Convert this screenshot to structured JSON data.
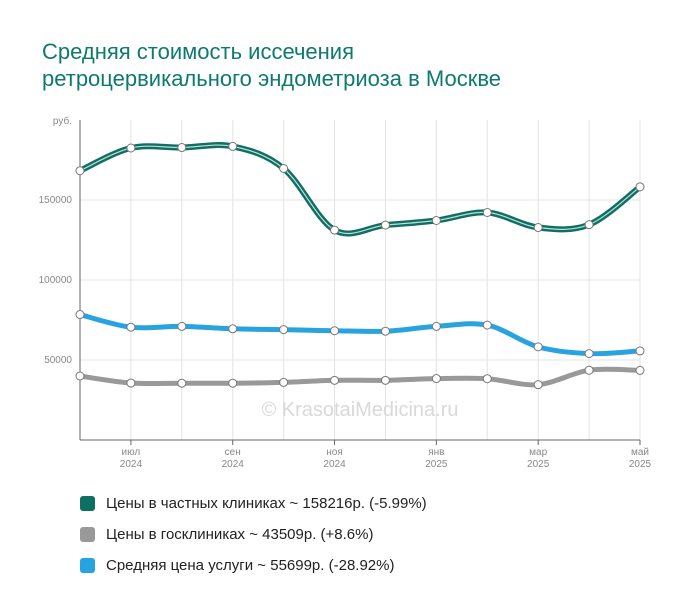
{
  "chart_data": {
    "type": "line",
    "title_lines": [
      "Средняя стоимость иссечения",
      "ретроцервикального эндометриоза в Москве"
    ],
    "y_unit": "руб.",
    "ylim": [
      0,
      200000
    ],
    "y_ticks": [
      {
        "value": 50000,
        "label": "50000"
      },
      {
        "value": 100000,
        "label": "100000"
      },
      {
        "value": 150000,
        "label": "150000"
      }
    ],
    "x_ticks": [
      {
        "index": 1,
        "month": "июл",
        "year": "2024"
      },
      {
        "index": 3,
        "month": "сен",
        "year": "2024"
      },
      {
        "index": 5,
        "month": "ноя",
        "year": "2024"
      },
      {
        "index": 7,
        "month": "янв",
        "year": "2025"
      },
      {
        "index": 9,
        "month": "мар",
        "year": "2025"
      },
      {
        "index": 11,
        "month": "май",
        "year": "2025"
      }
    ],
    "grid": true,
    "legend_position": "bottom",
    "watermark": "© KrasotaiMedicina.ru",
    "series": [
      {
        "name": "Цены в частных клиниках",
        "legend_text": "Цены в частных клиниках ~ 158216р. (-5.99%)",
        "color": "#0e6f63",
        "style": "ribbon",
        "values": [
          168300,
          182500,
          182800,
          183500,
          169700,
          131200,
          134300,
          137200,
          142200,
          132800,
          134600,
          158216
        ]
      },
      {
        "name": "Цены в госклиниках",
        "legend_text": "Цены в госклиниках ~ 43509р. (+8.6%)",
        "color": "#999999",
        "style": "line",
        "values": [
          40000,
          35600,
          35500,
          35500,
          36000,
          37300,
          37300,
          38400,
          38300,
          34600,
          43600,
          43509
        ]
      },
      {
        "name": "Средняя цена услуги",
        "legend_text": "Средняя цена услуги ~ 55699р. (-28.92%)",
        "color": "#29a3e0",
        "style": "line",
        "values": [
          78400,
          70500,
          71000,
          69500,
          69000,
          68300,
          68000,
          71000,
          71800,
          58200,
          54000,
          55699
        ]
      }
    ]
  }
}
